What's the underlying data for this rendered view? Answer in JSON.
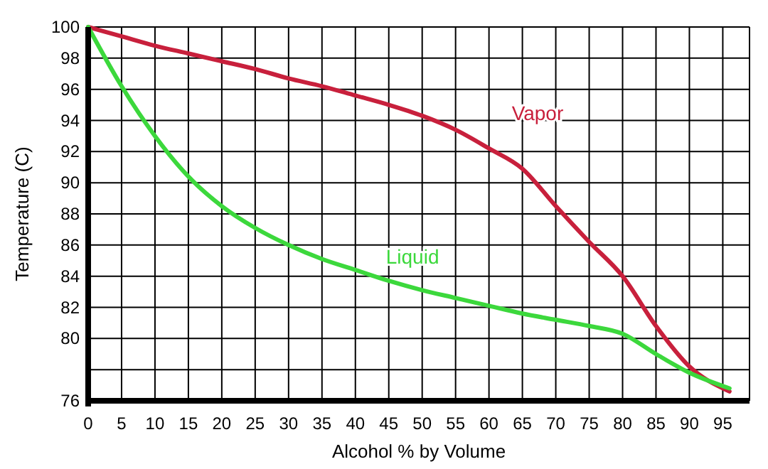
{
  "chart_data": {
    "type": "line",
    "xlabel": "Alcohol % by Volume",
    "ylabel": "Temperature (C)",
    "xlim": [
      0,
      99
    ],
    "ylim": [
      76,
      100
    ],
    "xticks": [
      0,
      5,
      10,
      15,
      20,
      25,
      30,
      35,
      40,
      45,
      50,
      55,
      60,
      65,
      70,
      75,
      80,
      85,
      90,
      95
    ],
    "yticks": [
      76,
      {
        "value": 78,
        "label": null
      },
      80,
      82,
      84,
      86,
      88,
      90,
      92,
      94,
      96,
      98,
      100
    ],
    "grid": true,
    "marker": "none",
    "line_style": "solid",
    "series": [
      {
        "name": "Vapor",
        "color": "#c8203c",
        "x": [
          0,
          5,
          10,
          15,
          20,
          25,
          30,
          35,
          40,
          45,
          50,
          55,
          60,
          65,
          70,
          75,
          80,
          85,
          90,
          96
        ],
        "values": [
          100,
          99.4,
          98.8,
          98.3,
          97.8,
          97.3,
          96.7,
          96.2,
          95.6,
          95.0,
          94.3,
          93.4,
          92.2,
          90.9,
          88.5,
          86.2,
          84.0,
          80.8,
          78.2,
          76.6
        ]
      },
      {
        "name": "Liquid",
        "color": "#3cd83c",
        "x": [
          0,
          5,
          10,
          15,
          20,
          25,
          30,
          35,
          40,
          45,
          50,
          55,
          60,
          65,
          70,
          75,
          80,
          85,
          90,
          96
        ],
        "values": [
          100,
          96.2,
          93.0,
          90.4,
          88.5,
          87.1,
          86.0,
          85.1,
          84.4,
          83.7,
          83.1,
          82.6,
          82.1,
          81.6,
          81.2,
          80.8,
          80.3,
          79.0,
          77.8,
          76.8
        ]
      }
    ]
  }
}
